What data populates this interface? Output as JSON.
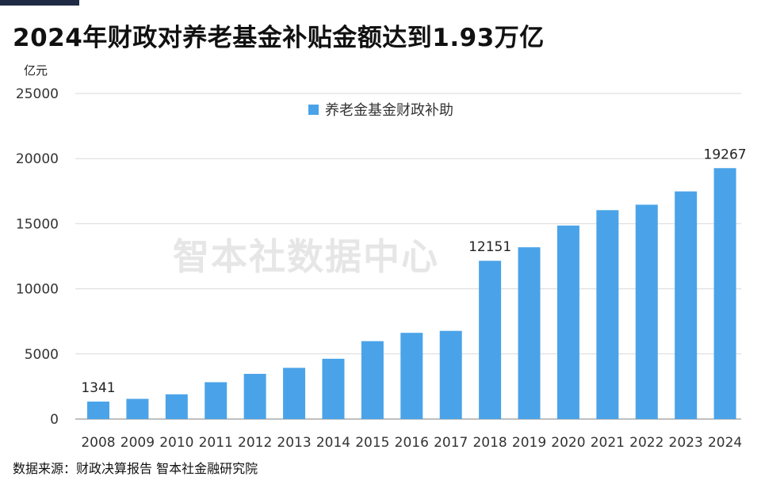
{
  "title": "2024年财政对养老基金补贴金额达到1.93万亿",
  "unit": "亿元",
  "watermark": "智本社数据中心",
  "source": "数据来源：财政决算报告 智本社金融研究院",
  "chart_data": {
    "type": "bar",
    "categories": [
      "2008",
      "2009",
      "2010",
      "2011",
      "2012",
      "2013",
      "2014",
      "2015",
      "2016",
      "2017",
      "2018",
      "2019",
      "2020",
      "2021",
      "2022",
      "2023",
      "2024"
    ],
    "series": [
      {
        "name": "养老金基金财政补助",
        "color": "#4aa3e8",
        "values": [
          1341,
          1550,
          1900,
          2830,
          3470,
          3930,
          4630,
          5980,
          6620,
          6770,
          12151,
          13190,
          14860,
          16040,
          16460,
          17480,
          19267
        ]
      }
    ],
    "data_labels": [
      {
        "category": "2008",
        "text": "1341"
      },
      {
        "category": "2018",
        "text": "12151"
      },
      {
        "category": "2024",
        "text": "19267"
      }
    ],
    "ylim": [
      0,
      25000
    ],
    "yticks": [
      0,
      5000,
      10000,
      15000,
      20000,
      25000
    ],
    "ylabel": "亿元",
    "xlabel": "",
    "grid": true,
    "legend_position": "top-center"
  }
}
